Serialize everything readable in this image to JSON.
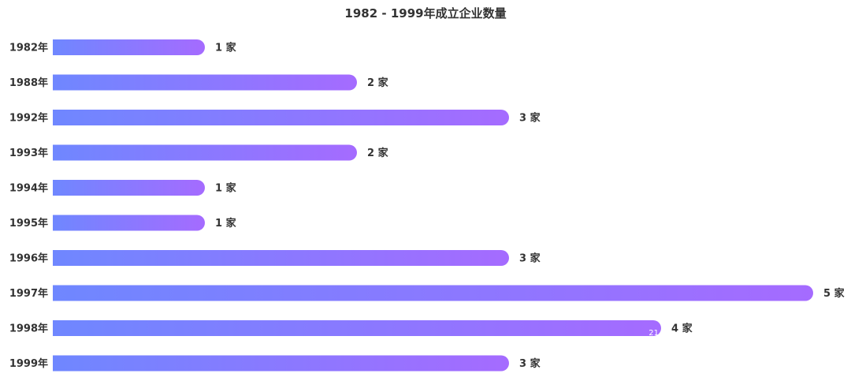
{
  "chart_data": {
    "type": "bar",
    "orientation": "horizontal",
    "title": "1982 - 1999年成立企业数量",
    "xlabel": "",
    "ylabel": "",
    "categories": [
      "1982年",
      "1988年",
      "1992年",
      "1993年",
      "1994年",
      "1995年",
      "1996年",
      "1997年",
      "1998年",
      "1999年"
    ],
    "values": [
      1,
      2,
      3,
      2,
      1,
      1,
      3,
      5,
      4,
      3
    ],
    "value_labels": [
      "1 家",
      "2 家",
      "3 家",
      "2 家",
      "1 家",
      "1 家",
      "3 家",
      "5 家",
      "4 家",
      "3 家"
    ],
    "xlim": [
      0,
      5
    ],
    "grid": false,
    "legend": "none",
    "inner_annotation": {
      "category_index": 8,
      "text": "21"
    },
    "colors": {
      "gradient_start": "#6f87ff",
      "gradient_end": "#a56bff"
    }
  }
}
